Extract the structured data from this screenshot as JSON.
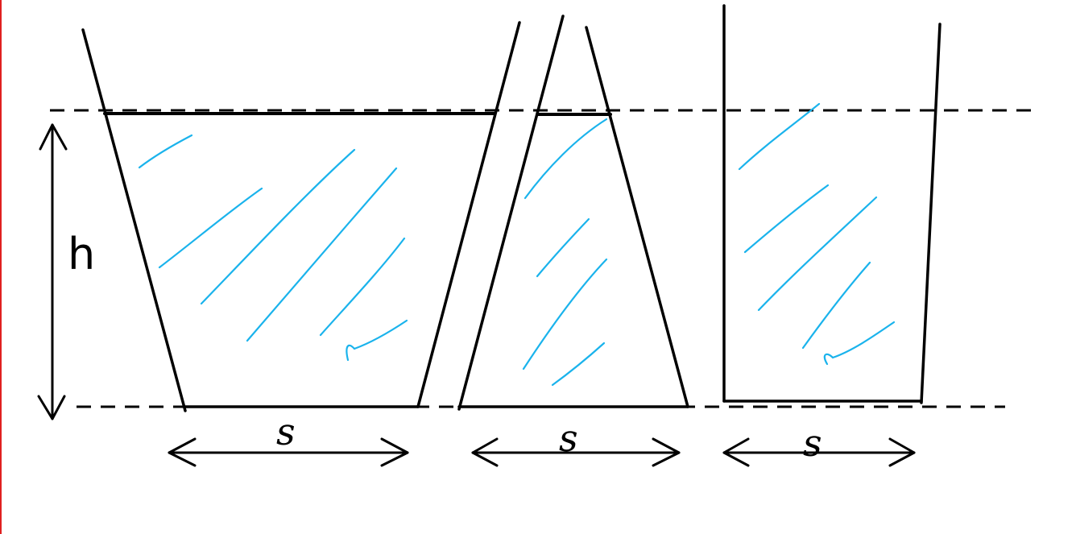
{
  "diagram": {
    "height_label": "h",
    "base_labels": [
      "s",
      "s",
      "s"
    ],
    "colors": {
      "ink": "#000000",
      "water": "#1ab3ec",
      "edge": "#e02020"
    }
  }
}
